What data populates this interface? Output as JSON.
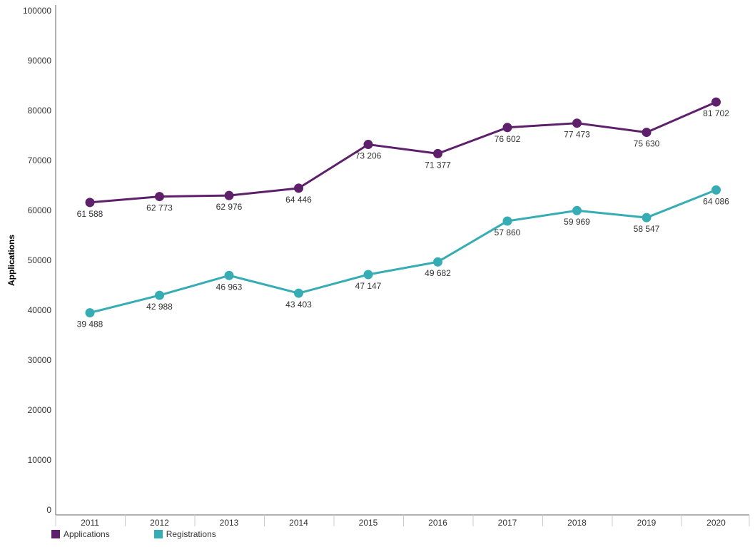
{
  "chart_data": {
    "type": "line",
    "title": "",
    "xlabel": "",
    "ylabel": "Applications",
    "ylim": [
      0,
      100000
    ],
    "yticks": [
      0,
      10000,
      20000,
      30000,
      40000,
      50000,
      60000,
      70000,
      80000,
      90000,
      100000
    ],
    "x": [
      "2011",
      "2012",
      "2013",
      "2014",
      "2015",
      "2016",
      "2017",
      "2018",
      "2019",
      "2020"
    ],
    "series": [
      {
        "name": "Applications",
        "color": "#5e1f6b",
        "values": [
          61588,
          62773,
          62976,
          64446,
          73206,
          71377,
          76602,
          77473,
          75630,
          81702
        ],
        "labels": [
          "61 588",
          "62 773",
          "62 976",
          "64 446",
          "73 206",
          "71 377",
          "76 602",
          "77 473",
          "75 630",
          "81 702"
        ]
      },
      {
        "name": "Registrations",
        "color": "#36acb4",
        "values": [
          39488,
          42988,
          46963,
          43403,
          47147,
          49682,
          57860,
          59969,
          58547,
          64086
        ],
        "labels": [
          "39 488",
          "42 988",
          "46 963",
          "43 403",
          "47 147",
          "49 682",
          "57 860",
          "59 969",
          "58 547",
          "64 086"
        ]
      }
    ],
    "grid": false,
    "legend_position": "bottom-left"
  }
}
